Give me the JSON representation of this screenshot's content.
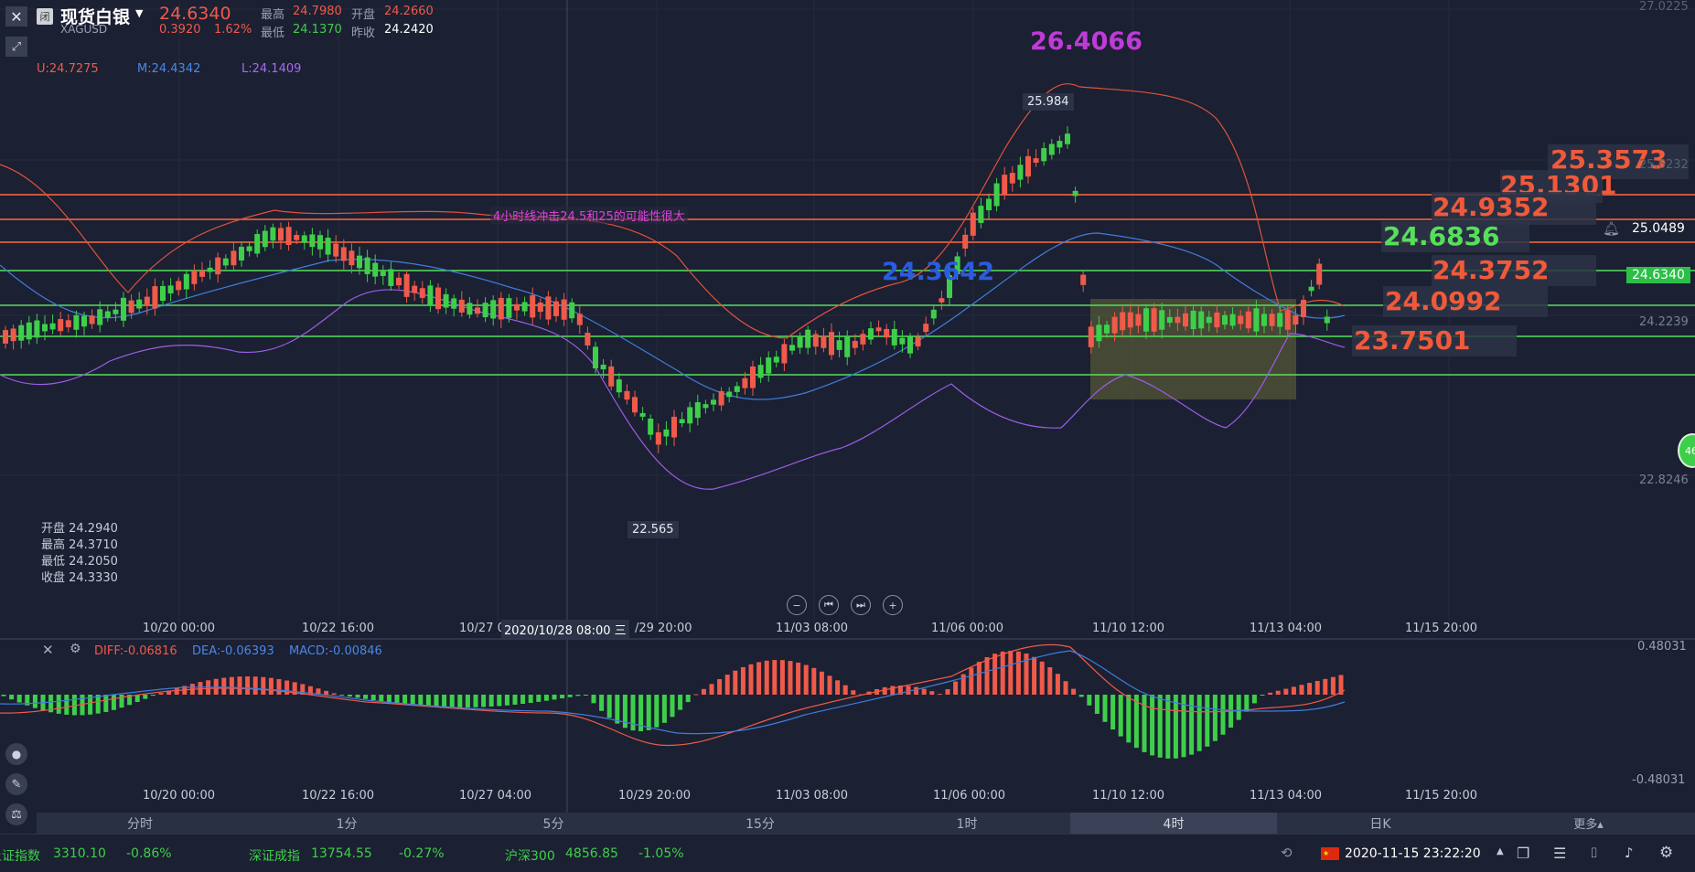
{
  "header": {
    "close_icon": "close-icon",
    "badge": "闭",
    "name": "现货白银",
    "symbol": "XAGUSD",
    "price": "24.6340",
    "change": "0.3920",
    "change_pct": "1.62%",
    "high_label": "最高",
    "high": "24.7980",
    "open_label": "开盘",
    "open": "24.2660",
    "low_label": "最低",
    "low": "24.1370",
    "prevclose_label": "昨收",
    "prevclose": "24.2420"
  },
  "bollinger": {
    "u": "U:24.7275",
    "m": "M:24.4342",
    "l": "L:24.1409"
  },
  "annotation": "4小时线冲击24.5和25的可能性很大",
  "big_labels": {
    "peak": "26.4066",
    "mid_blue": "24.3642",
    "l1": "25.3573",
    "l2": "25.1301",
    "l3": "24.9352",
    "l4": "24.6836",
    "l5": "24.3752",
    "l6": "24.0992",
    "l7": "23.7501"
  },
  "callouts": {
    "high": "25.984",
    "low": "22.565"
  },
  "price_axis": [
    "27.0225",
    "25.6232",
    "25.0489",
    "24.6340",
    "24.2239",
    "22.8246"
  ],
  "hover_ohlc": {
    "open": "开盘 24.2940",
    "high": "最高 24.3710",
    "low": "最低 24.2050",
    "close": "收盘 24.3330"
  },
  "time_axis": [
    "10/20 00:00",
    "10/22 16:00",
    "10/27 0",
    "2020/10/28 08:00 三",
    "/29 20:00",
    "11/03 08:00",
    "11/06 00:00",
    "11/10 12:00",
    "11/13 04:00",
    "11/15 20:00"
  ],
  "macd_time_axis": [
    "10/20 00:00",
    "10/22 16:00",
    "10/27 04:00",
    "10/29 20:00",
    "11/03 08:00",
    "11/06 00:00",
    "11/10 12:00",
    "11/13 04:00",
    "11/15 20:00"
  ],
  "macd": {
    "diff": "DIFF:-0.06816",
    "dea": "DEA:-0.06393",
    "macd": "MACD:-0.00846",
    "top": "0.48031",
    "bottom": "-0.48031"
  },
  "timeframes": [
    "分时",
    "1分",
    "5分",
    "15分",
    "1时",
    "4时",
    "日K",
    "更多▴"
  ],
  "active_timeframe": "4时",
  "status_bar": [
    {
      "name": "上证指数",
      "value": "3310.10",
      "pct": "-0.86%"
    },
    {
      "name": "深证成指",
      "value": "13754.55",
      "pct": "-0.27%"
    },
    {
      "name": "沪深300",
      "value": "4856.85",
      "pct": "-1.05%"
    }
  ],
  "datetime": "2020-11-15 23:22:20",
  "colors": {
    "bg": "#1b2032",
    "up": "#f05a4a",
    "down": "#3ecf4a",
    "orange_line": "#ff6a3d",
    "green_line": "#56e05a",
    "blue": "#3f7ddc",
    "purple": "#9b5de5"
  }
}
